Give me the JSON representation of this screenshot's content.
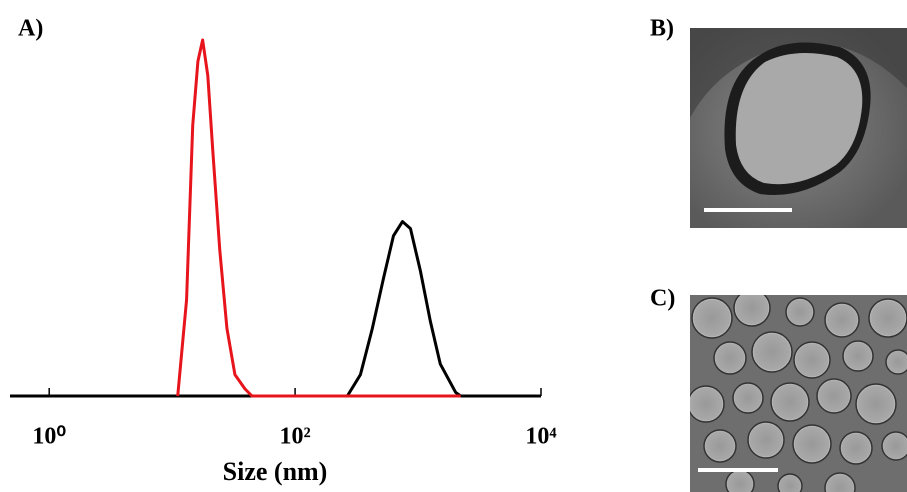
{
  "chart_data": {
    "type": "line",
    "panel_label": "A)",
    "xlabel": "Size (nm)",
    "xscale": "log",
    "xlim": [
      0.48,
      10000
    ],
    "ylim": [
      0,
      100
    ],
    "xticks": [
      {
        "value": 1,
        "label": "10⁰"
      },
      {
        "value": 100,
        "label": "10²"
      },
      {
        "value": 10000,
        "label": "10⁴"
      }
    ],
    "series": [
      {
        "color": "#000000",
        "x": [
          0.48,
          266,
          340,
          425,
          523,
          631,
          747,
          868,
          1047,
          1259,
          1516,
          2023,
          2223,
          10000
        ],
        "values": [
          0,
          0,
          6,
          19,
          33,
          45,
          49,
          47,
          35,
          21,
          9,
          1,
          0,
          0
        ]
      },
      {
        "color": "#e8141b",
        "x": [
          11.1,
          13.1,
          14.7,
          16.2,
          17.7,
          19.5,
          21.4,
          24.4,
          27.9,
          32.4,
          39.1,
          44.6,
          281,
          2223
        ],
        "values": [
          0,
          27,
          76,
          94,
          100,
          90,
          69,
          41,
          19,
          6,
          2,
          0,
          0,
          0
        ]
      }
    ]
  },
  "images": [
    {
      "label": "B)"
    },
    {
      "label": "C)"
    }
  ]
}
